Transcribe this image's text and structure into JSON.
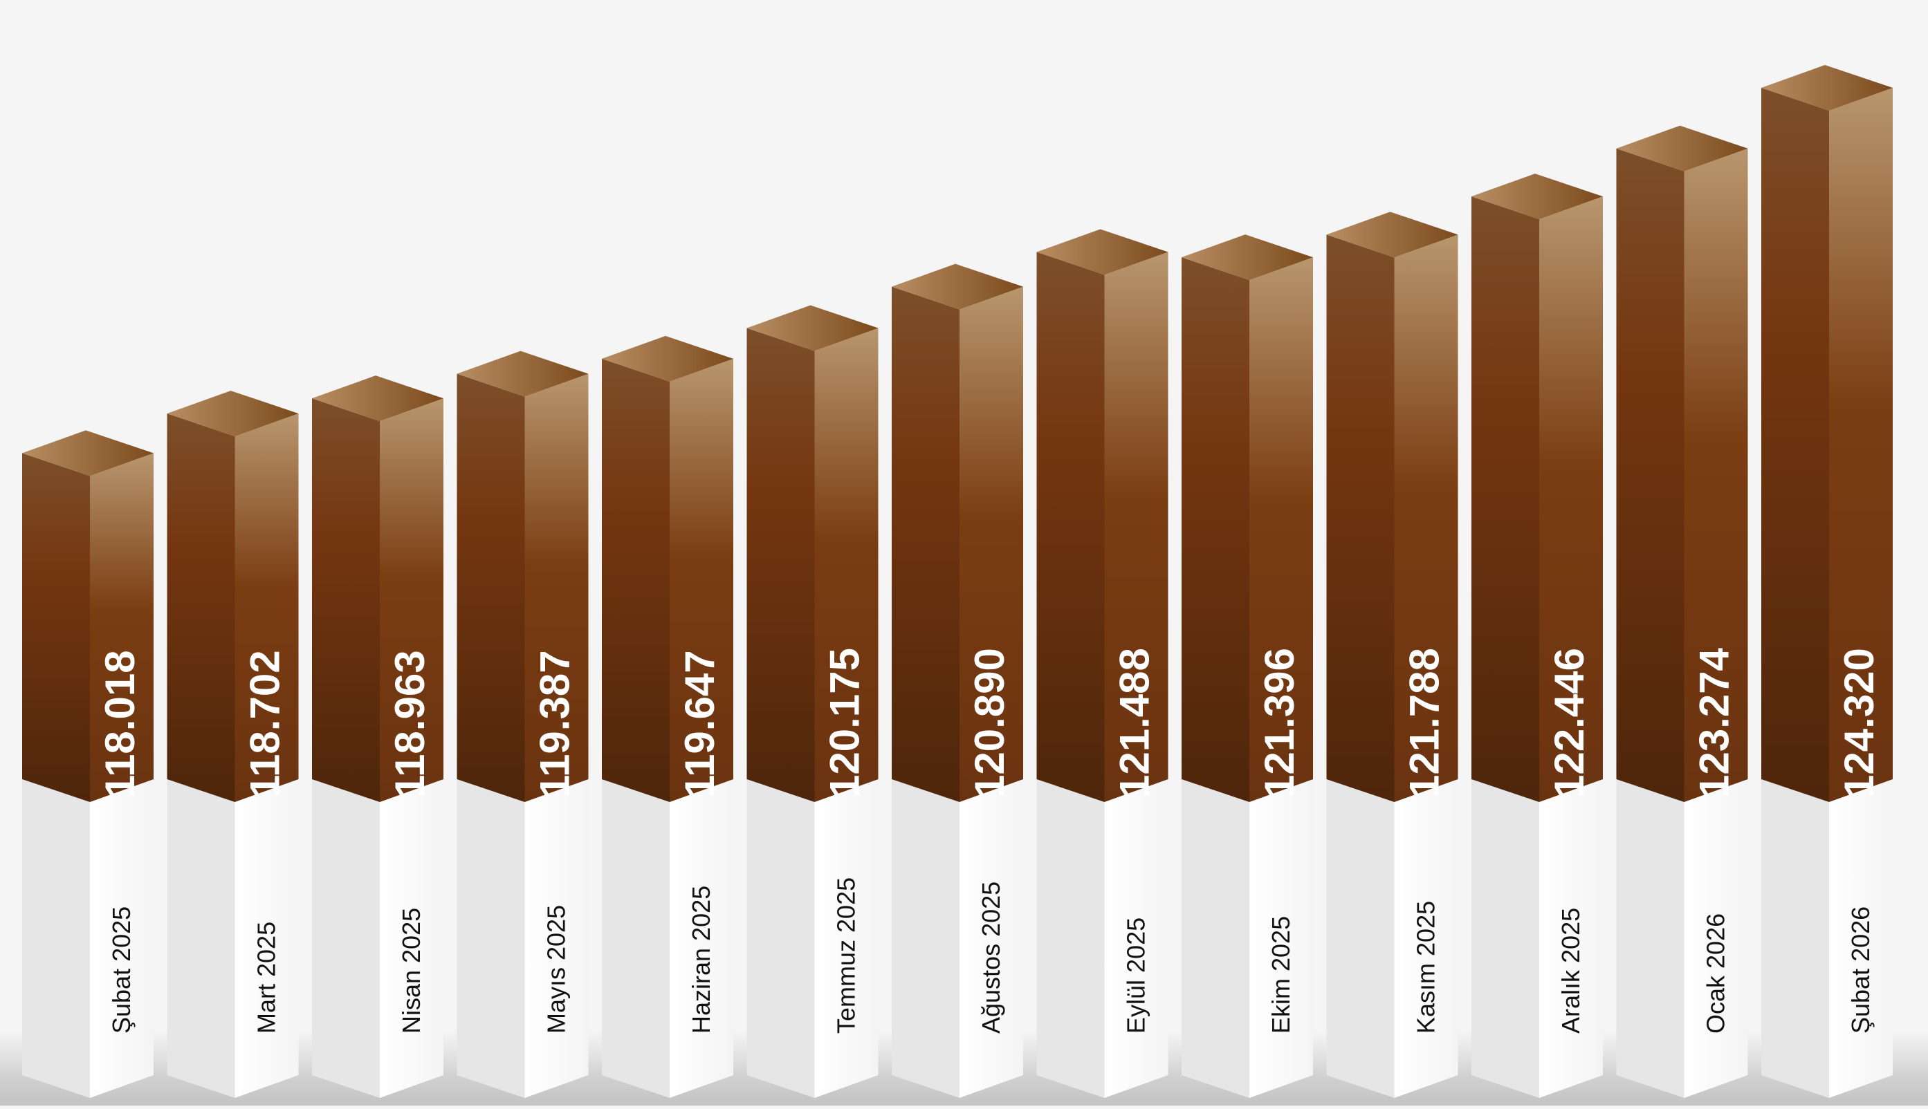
{
  "chart_data": {
    "type": "bar",
    "categories": [
      "Şubat 2025",
      "Mart 2025",
      "Nisan 2025",
      "Mayıs 2025",
      "Haziran 2025",
      "Temmuz 2025",
      "Ağustos 2025",
      "Eylül 2025",
      "Ekim 2025",
      "Kasım 2025",
      "Aralık 2025",
      "Ocak 2026",
      "Şubat 2026"
    ],
    "values": [
      118.018,
      118.702,
      118.963,
      119.387,
      119.647,
      120.175,
      120.89,
      121.488,
      121.396,
      121.788,
      122.446,
      123.274,
      124.32
    ],
    "value_labels": [
      "118.018",
      "118.702",
      "118.963",
      "119.387",
      "119.647",
      "120.175",
      "120.890",
      "121.488",
      "121.396",
      "121.788",
      "122.446",
      "123.274",
      "124.320"
    ],
    "title": "",
    "xlabel": "",
    "ylabel": "",
    "ylim": [
      112,
      125
    ],
    "grid": false,
    "legend": "none",
    "style": "3d-columns",
    "colors": {
      "background": "#f5f5f5",
      "bar_dark": "#5a2c0c",
      "bar_mid": "#7a3b12",
      "bar_light": "#b8956d",
      "base_front": "#e6e6e6",
      "base_side": "#ffffff",
      "label_text": "#ffffff",
      "category_text": "#111111"
    }
  }
}
